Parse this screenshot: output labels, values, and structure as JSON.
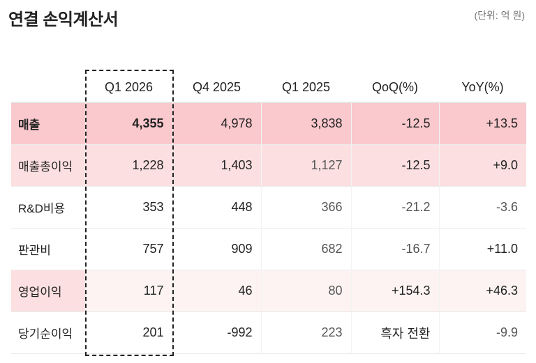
{
  "title": "연결 손익계산서",
  "unit": "(단위: 억 원)",
  "headers": [
    "",
    "Q1 2026",
    "Q4 2025",
    "Q1 2025",
    "QoQ(%)",
    "YoY(%)"
  ],
  "rows": [
    {
      "label": "매출",
      "values": [
        "4,355",
        "4,978",
        "3,838",
        "-12.5",
        "+13.5"
      ]
    },
    {
      "label": "매출총이익",
      "values": [
        "1,228",
        "1,403",
        "1,127",
        "-12.5",
        "+9.0"
      ]
    },
    {
      "label": "R&D비용",
      "values": [
        "353",
        "448",
        "366",
        "-21.2",
        "-3.6"
      ]
    },
    {
      "label": "판관비",
      "values": [
        "757",
        "909",
        "682",
        "-16.7",
        "+11.0"
      ]
    },
    {
      "label": "영업이익",
      "values": [
        "117",
        "46",
        "80",
        "+154.3",
        "+46.3"
      ]
    },
    {
      "label": "당기순이익",
      "values": [
        "201",
        "-992",
        "223",
        "흑자 전환",
        "-9.9"
      ]
    }
  ],
  "colors": {
    "row_strong": "#f9c9cd",
    "row_medium": "#fce0e1",
    "row_light": "#fdf3f3"
  }
}
